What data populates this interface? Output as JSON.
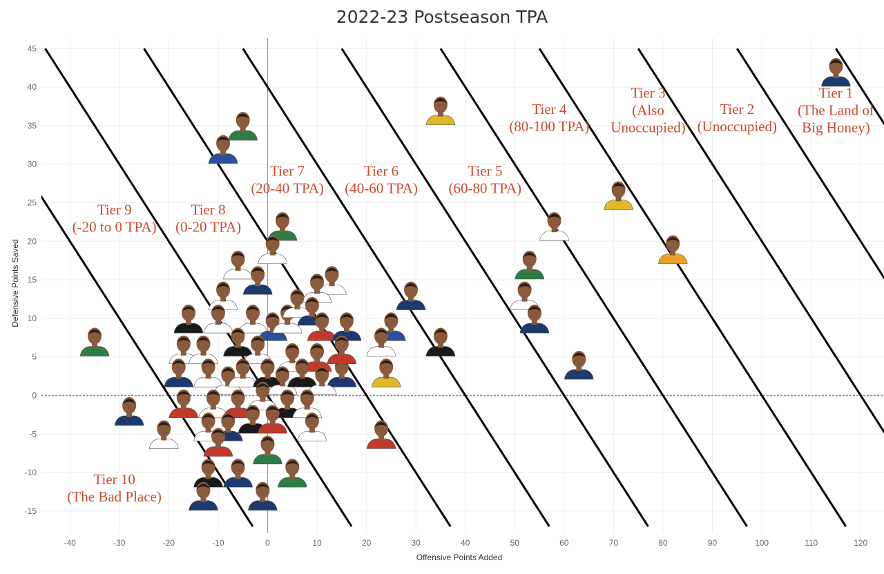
{
  "chart_data": {
    "type": "scatter",
    "title": "2022-23 Postseason TPA",
    "xlabel": "Offensive Points Added",
    "ylabel": "Defensive Points Saved",
    "xlim": [
      -46,
      125
    ],
    "ylim": [
      -18,
      46
    ],
    "x_ticks": [
      -40,
      -30,
      -20,
      -10,
      0,
      10,
      20,
      30,
      40,
      50,
      60,
      70,
      80,
      90,
      100,
      110,
      120
    ],
    "y_ticks": [
      -15,
      -10,
      -5,
      0,
      5,
      10,
      15,
      20,
      25,
      30,
      35,
      40,
      45
    ],
    "grid": true,
    "tier_lines": [
      {
        "tpa": -20
      },
      {
        "tpa": 0
      },
      {
        "tpa": 20
      },
      {
        "tpa": 40
      },
      {
        "tpa": 60
      },
      {
        "tpa": 80
      },
      {
        "tpa": 100
      },
      {
        "tpa": 120
      },
      {
        "tpa": 140
      },
      {
        "tpa": 160
      }
    ],
    "tier_labels": [
      {
        "lines": [
          "Tier 1",
          "(The Land of",
          "Big Honey)"
        ],
        "x": 115,
        "y": 37
      },
      {
        "lines": [
          "Tier 2",
          "(Unoccupied)"
        ],
        "x": 95,
        "y": 36
      },
      {
        "lines": [
          "Tier 3",
          "(Also",
          "Unoccupied)"
        ],
        "x": 77,
        "y": 37
      },
      {
        "lines": [
          "Tier 4",
          "(80-100 TPA)"
        ],
        "x": 57,
        "y": 36
      },
      {
        "lines": [
          "Tier 5",
          "(60-80 TPA)"
        ],
        "x": 44,
        "y": 28
      },
      {
        "lines": [
          "Tier 6",
          "(40-60 TPA)"
        ],
        "x": 23,
        "y": 28
      },
      {
        "lines": [
          "Tier 7",
          "(20-40 TPA)"
        ],
        "x": 4,
        "y": 28
      },
      {
        "lines": [
          "Tier 8",
          "(0-20 TPA)"
        ],
        "x": -12,
        "y": 23
      },
      {
        "lines": [
          "Tier 9",
          "(-20 to 0 TPA)"
        ],
        "x": -31,
        "y": 23
      },
      {
        "lines": [
          "Tier 10",
          "(The Bad Place)"
        ],
        "x": -31,
        "y": -12
      }
    ],
    "points": [
      {
        "x": 115,
        "y": 41,
        "color": "#1d3a6e"
      },
      {
        "x": 35,
        "y": 36,
        "color": "#e0b729"
      },
      {
        "x": 71,
        "y": 25,
        "color": "#e0b729"
      },
      {
        "x": 82,
        "y": 18,
        "color": "#e8a126"
      },
      {
        "x": 58,
        "y": 21,
        "color": "#ffffff"
      },
      {
        "x": -5,
        "y": 34,
        "color": "#2e7d46"
      },
      {
        "x": -9,
        "y": 31,
        "color": "#2b4f9c"
      },
      {
        "x": 53,
        "y": 16,
        "color": "#2e7d46"
      },
      {
        "x": 52,
        "y": 12,
        "color": "#ffffff"
      },
      {
        "x": 54,
        "y": 9,
        "color": "#1d3a6e"
      },
      {
        "x": 63,
        "y": 3,
        "color": "#1d3a6e"
      },
      {
        "x": -35,
        "y": 6,
        "color": "#2e7d46"
      },
      {
        "x": -28,
        "y": -3,
        "color": "#1d3a6e"
      },
      {
        "x": -21,
        "y": -6,
        "color": "#ffffff"
      },
      {
        "x": 3,
        "y": 21,
        "color": "#2e7d46"
      },
      {
        "x": 1,
        "y": 18,
        "color": "#ffffff"
      },
      {
        "x": -6,
        "y": 16,
        "color": "#ffffff"
      },
      {
        "x": -2,
        "y": 14,
        "color": "#1d3a6e"
      },
      {
        "x": 13,
        "y": 14,
        "color": "#ffffff"
      },
      {
        "x": 10,
        "y": 13,
        "color": "#ffffff"
      },
      {
        "x": 29,
        "y": 12,
        "color": "#1d3a6e"
      },
      {
        "x": 25,
        "y": 8,
        "color": "#2b4f9c"
      },
      {
        "x": 35,
        "y": 6,
        "color": "#1a1a1a"
      },
      {
        "x": 23,
        "y": 6,
        "color": "#ffffff"
      },
      {
        "x": 24,
        "y": 2,
        "color": "#e0b729"
      },
      {
        "x": 15,
        "y": 2,
        "color": "#1d3a6e"
      },
      {
        "x": 23,
        "y": -6,
        "color": "#c0392b"
      },
      {
        "x": -16,
        "y": 9,
        "color": "#1a1a1a"
      },
      {
        "x": -9,
        "y": 12,
        "color": "#ffffff"
      },
      {
        "x": -10,
        "y": 9,
        "color": "#ffffff"
      },
      {
        "x": -3,
        "y": 9,
        "color": "#ffffff"
      },
      {
        "x": 1,
        "y": 8,
        "color": "#2b4f9c"
      },
      {
        "x": 4,
        "y": 9,
        "color": "#ffffff"
      },
      {
        "x": 6,
        "y": 11,
        "color": "#ffffff"
      },
      {
        "x": 9,
        "y": 10,
        "color": "#1d3a6e"
      },
      {
        "x": 11,
        "y": 8,
        "color": "#c0392b"
      },
      {
        "x": 16,
        "y": 8,
        "color": "#1d3a6e"
      },
      {
        "x": 15,
        "y": 5,
        "color": "#c0392b"
      },
      {
        "x": -17,
        "y": 5,
        "color": "#ffffff"
      },
      {
        "x": -13,
        "y": 5,
        "color": "#ffffff"
      },
      {
        "x": -6,
        "y": 6,
        "color": "#1a1a1a"
      },
      {
        "x": -2,
        "y": 5,
        "color": "#ffffff"
      },
      {
        "x": 5,
        "y": 4,
        "color": "#ffffff"
      },
      {
        "x": 10,
        "y": 4,
        "color": "#c0392b"
      },
      {
        "x": -18,
        "y": 2,
        "color": "#1d3a6e"
      },
      {
        "x": -12,
        "y": 2,
        "color": "#ffffff"
      },
      {
        "x": -8,
        "y": 1,
        "color": "#ffffff"
      },
      {
        "x": -5,
        "y": 2,
        "color": "#ffffff"
      },
      {
        "x": 0,
        "y": 2,
        "color": "#1a1a1a"
      },
      {
        "x": 3,
        "y": 1,
        "color": "#ffffff"
      },
      {
        "x": 7,
        "y": 2,
        "color": "#1a1a1a"
      },
      {
        "x": 11,
        "y": 1,
        "color": "#ffffff"
      },
      {
        "x": -17,
        "y": -2,
        "color": "#c0392b"
      },
      {
        "x": -11,
        "y": -2,
        "color": "#ffffff"
      },
      {
        "x": -6,
        "y": -2,
        "color": "#c0392b"
      },
      {
        "x": -1,
        "y": -1,
        "color": "#ffffff"
      },
      {
        "x": 4,
        "y": -2,
        "color": "#1a1a1a"
      },
      {
        "x": 8,
        "y": -2,
        "color": "#ffffff"
      },
      {
        "x": -12,
        "y": -5,
        "color": "#ffffff"
      },
      {
        "x": -8,
        "y": -5,
        "color": "#1d3a6e"
      },
      {
        "x": -3,
        "y": -4,
        "color": "#1a1a1a"
      },
      {
        "x": 1,
        "y": -4,
        "color": "#c0392b"
      },
      {
        "x": 9,
        "y": -5,
        "color": "#ffffff"
      },
      {
        "x": -10,
        "y": -7,
        "color": "#c0392b"
      },
      {
        "x": 0,
        "y": -8,
        "color": "#2e7d46"
      },
      {
        "x": -12,
        "y": -11,
        "color": "#1a1a1a"
      },
      {
        "x": -6,
        "y": -11,
        "color": "#1d3a6e"
      },
      {
        "x": 5,
        "y": -11,
        "color": "#2e7d46"
      },
      {
        "x": -13,
        "y": -14,
        "color": "#1d3a6e"
      },
      {
        "x": -1,
        "y": -14,
        "color": "#1d3a6e"
      }
    ]
  }
}
